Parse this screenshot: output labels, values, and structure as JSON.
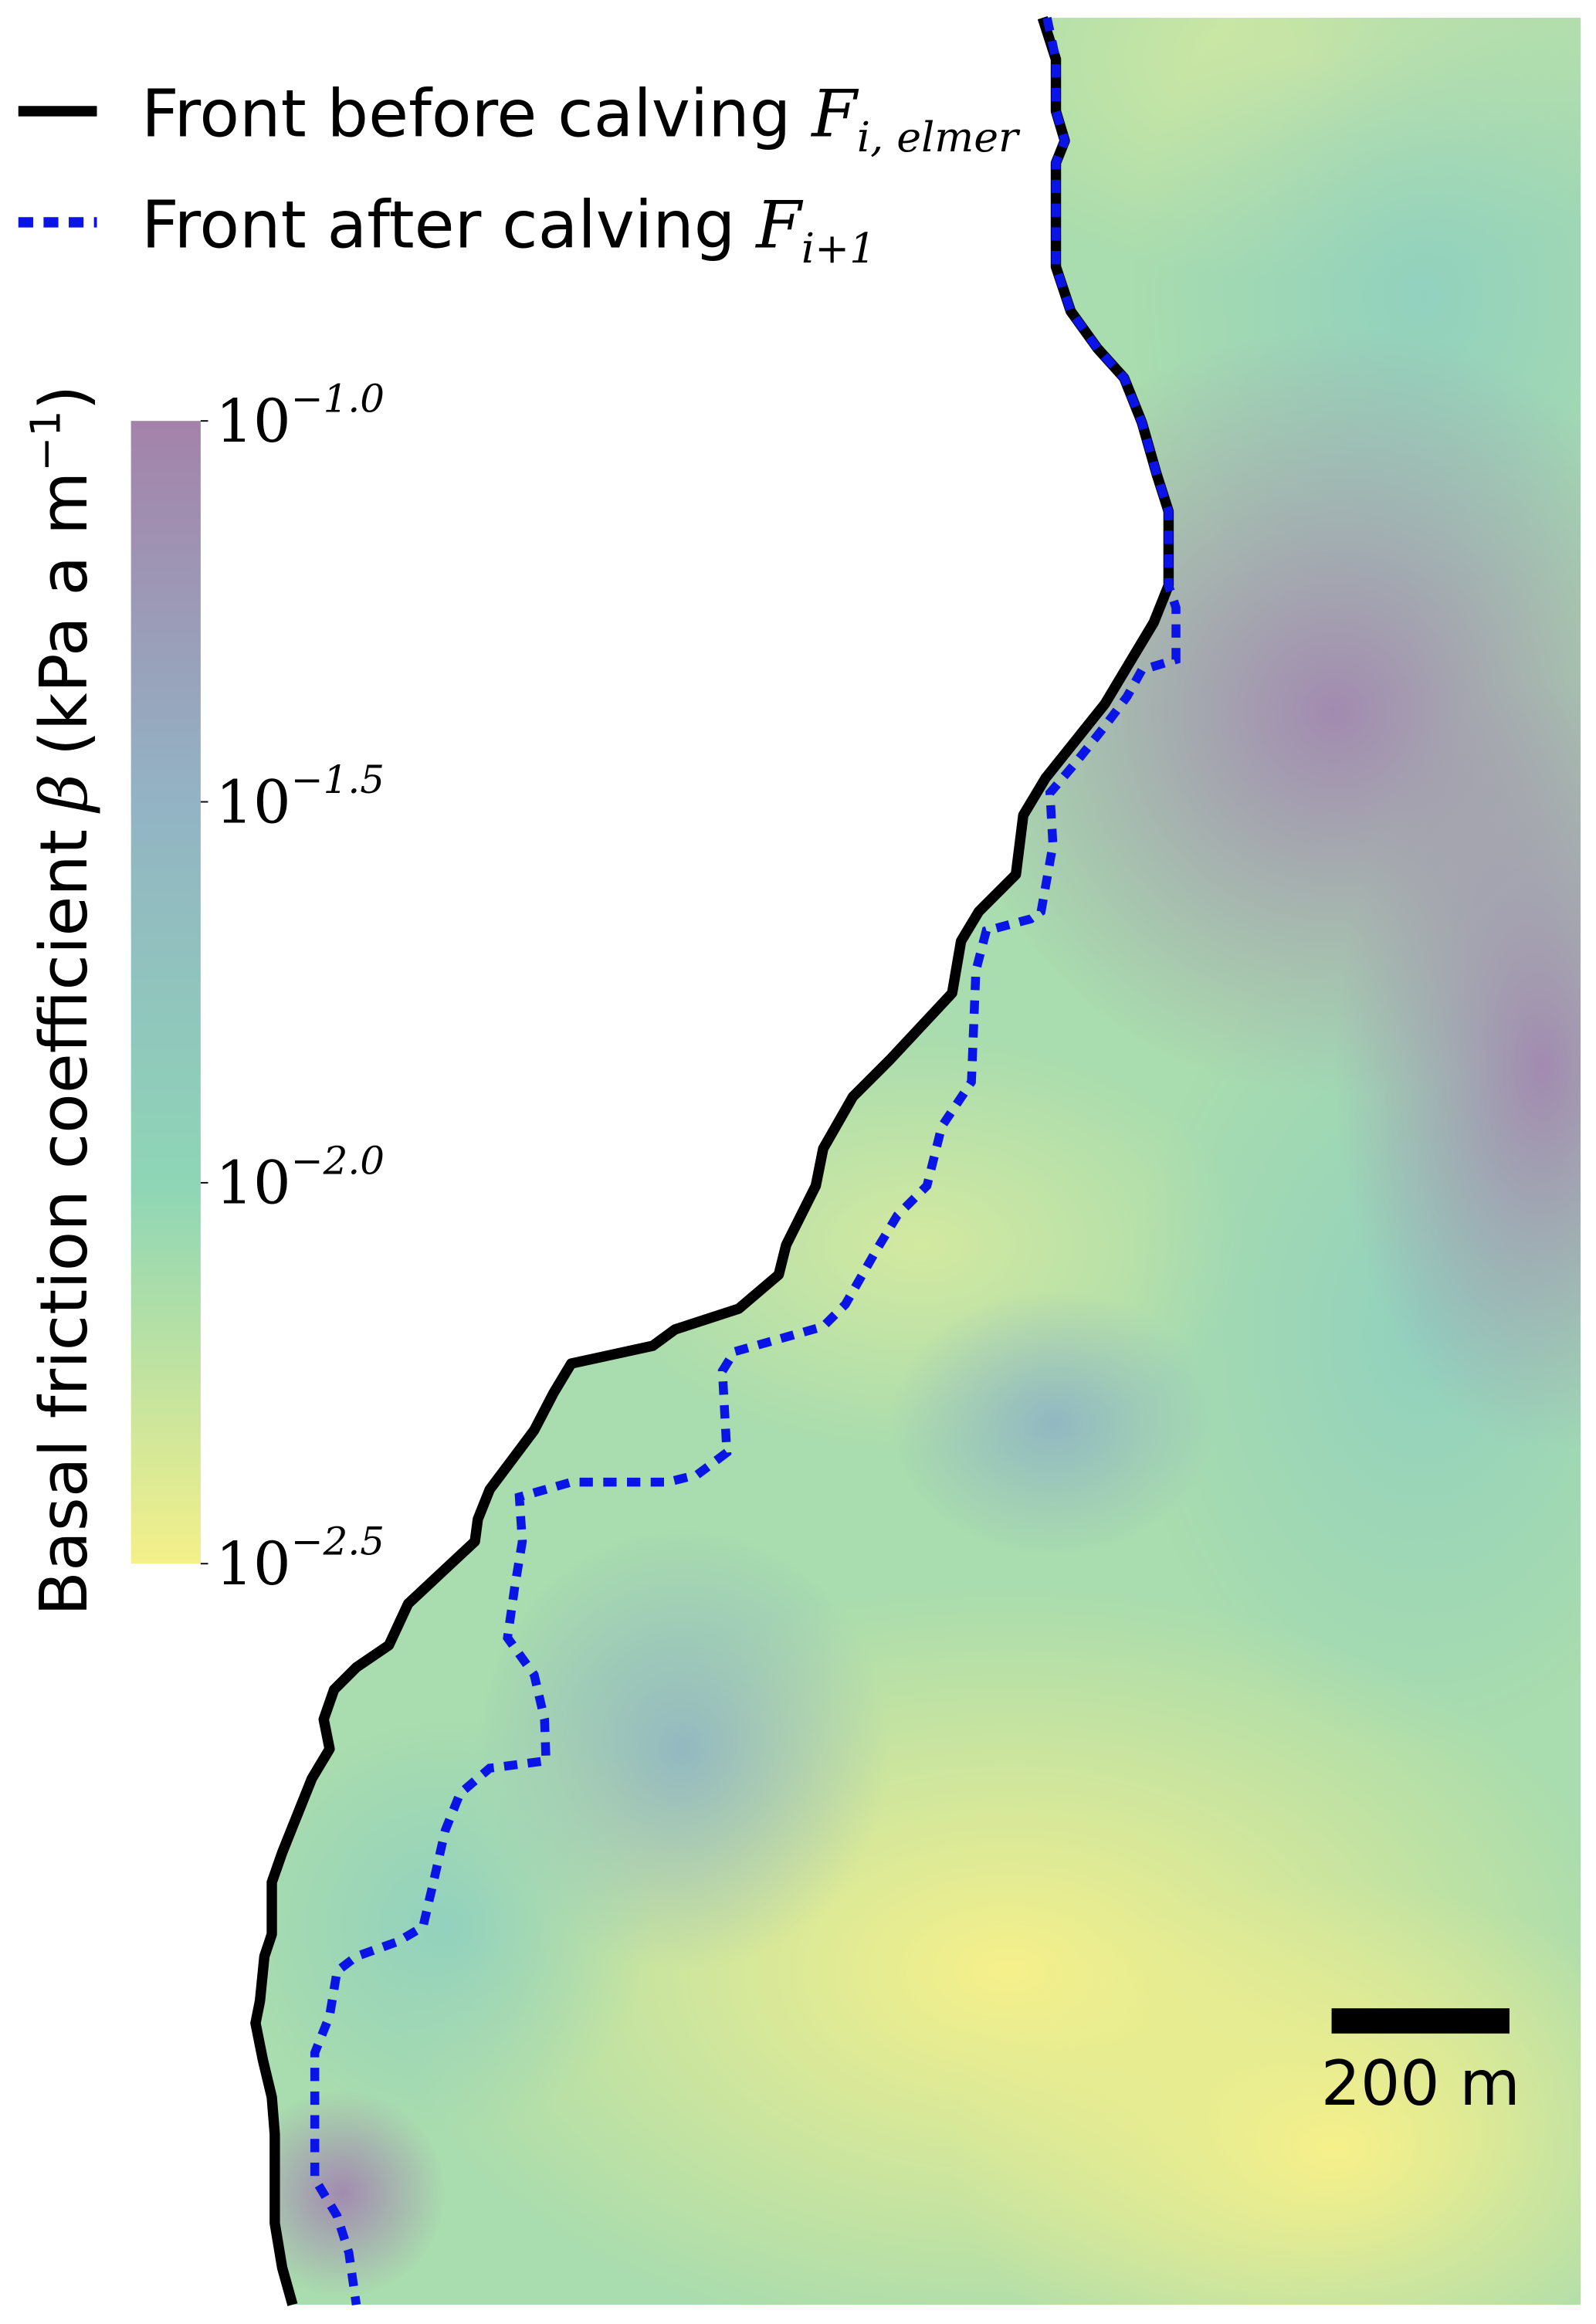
{
  "legend": [
    {
      "name": "Front before calving",
      "symbol": "F",
      "subscript": "i, elmer"
    },
    {
      "name": "Front after calving",
      "symbol": "F",
      "subscript": "i+1"
    }
  ],
  "colorbar": {
    "label": "Basal friction coefficient",
    "symbol": "β",
    "unit": "(kPa a m",
    "unit_exponent": "−1",
    "unit_close": ")",
    "lim": [
      -2.5,
      -1.0
    ],
    "ticks": [
      {
        "value": -1.0,
        "label": "10−1.0"
      },
      {
        "value": -1.5,
        "label": "10−1.5"
      },
      {
        "value": -2.0,
        "label": "10−2.0"
      },
      {
        "value": -2.5,
        "label": "10−2.5"
      }
    ]
  },
  "scale_bar": {
    "label": "200 m"
  }
}
